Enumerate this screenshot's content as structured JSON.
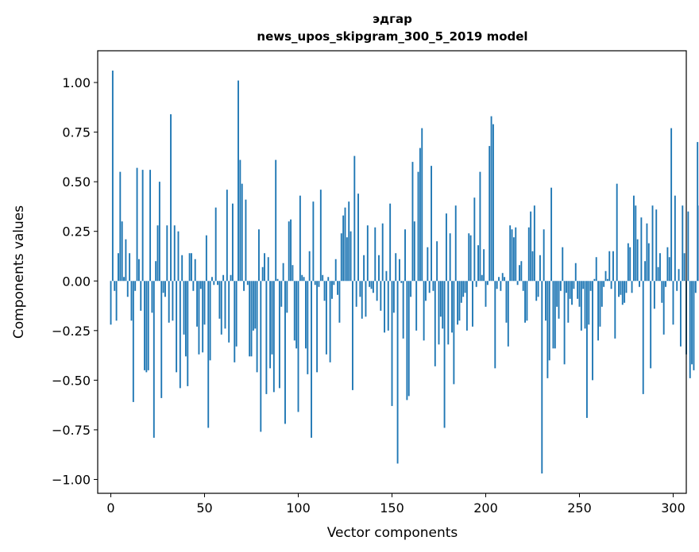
{
  "chart_data": {
    "type": "bar",
    "title": "эдгар",
    "subtitle": "news_upos_skipgram_300_5_2019 model",
    "xlabel": "Vector components",
    "ylabel": "Components values",
    "xlim": [
      -7,
      307
    ],
    "ylim": [
      -1.07,
      1.16
    ],
    "xticks": [
      0,
      50,
      100,
      150,
      200,
      250,
      300
    ],
    "yticks": [
      -1.0,
      -0.75,
      -0.5,
      -0.25,
      0.0,
      0.25,
      0.5,
      0.75,
      1.0
    ],
    "ytick_labels": [
      "−1.00",
      "−0.75",
      "−0.50",
      "−0.25",
      "0.00",
      "0.25",
      "0.50",
      "0.75",
      "1.00"
    ],
    "grid": false,
    "bar_color": "#1f77b4",
    "values": [
      -0.22,
      1.06,
      -0.05,
      -0.2,
      0.14,
      0.55,
      0.3,
      0.02,
      0.21,
      -0.08,
      0.14,
      -0.2,
      -0.61,
      -0.05,
      0.57,
      0.11,
      -0.15,
      0.56,
      -0.45,
      -0.46,
      -0.45,
      0.56,
      -0.16,
      -0.79,
      0.1,
      0.28,
      0.5,
      -0.59,
      -0.06,
      -0.08,
      0.28,
      -0.21,
      0.84,
      -0.2,
      0.28,
      -0.46,
      0.25,
      -0.54,
      0.13,
      -0.27,
      -0.38,
      -0.53,
      0.14,
      0.14,
      -0.05,
      0.11,
      -0.23,
      -0.37,
      -0.04,
      -0.36,
      -0.22,
      0.23,
      -0.74,
      -0.4,
      0.02,
      -0.02,
      0.37,
      -0.02,
      -0.19,
      -0.27,
      0.03,
      -0.24,
      0.46,
      -0.31,
      0.03,
      0.39,
      -0.41,
      -0.33,
      1.01,
      0.61,
      0.49,
      -0.05,
      0.41,
      -0.02,
      -0.38,
      -0.38,
      -0.25,
      -0.24,
      -0.46,
      0.26,
      -0.76,
      0.07,
      0.14,
      -0.57,
      0.12,
      -0.44,
      -0.37,
      -0.56,
      0.61,
      0.01,
      -0.54,
      -0.13,
      0.09,
      -0.72,
      -0.16,
      0.3,
      0.31,
      0.08,
      -0.3,
      -0.34,
      -0.66,
      0.43,
      0.03,
      0.02,
      -0.34,
      -0.47,
      0.15,
      -0.79,
      0.4,
      -0.02,
      -0.46,
      -0.03,
      0.46,
      0.03,
      -0.1,
      -0.37,
      0.02,
      -0.41,
      -0.09,
      -0.02,
      0.11,
      -0.07,
      -0.21,
      0.24,
      0.33,
      0.37,
      0.22,
      0.4,
      0.25,
      -0.55,
      0.63,
      -0.13,
      0.44,
      -0.08,
      -0.19,
      0.13,
      -0.18,
      0.28,
      -0.03,
      -0.04,
      -0.06,
      0.27,
      -0.1,
      0.13,
      -0.15,
      0.29,
      -0.26,
      0.05,
      -0.25,
      0.39,
      -0.63,
      -0.16,
      0.14,
      -0.92,
      0.11,
      -0.01,
      -0.29,
      0.26,
      -0.6,
      -0.58,
      -0.08,
      0.6,
      0.3,
      -0.25,
      0.55,
      0.67,
      0.77,
      -0.3,
      -0.1,
      0.17,
      -0.06,
      0.58,
      -0.05,
      -0.43,
      0.2,
      -0.32,
      -0.18,
      -0.24,
      -0.74,
      0.34,
      -0.32,
      0.24,
      -0.26,
      -0.52,
      0.38,
      -0.22,
      -0.2,
      -0.11,
      -0.08,
      -0.06,
      -0.25,
      0.24,
      0.23,
      -0.23,
      0.42,
      -0.03,
      0.18,
      0.55,
      0.03,
      0.16,
      -0.13,
      -0.02,
      0.68,
      0.83,
      0.79,
      -0.44,
      -0.04,
      0.02,
      -0.05,
      0.04,
      0.02,
      -0.21,
      -0.33,
      0.28,
      0.26,
      0.22,
      0.27,
      -0.02,
      0.08,
      0.1,
      -0.05,
      -0.21,
      -0.2,
      0.27,
      0.35,
      0.15,
      0.38,
      -0.1,
      -0.08,
      0.13,
      -0.97,
      0.26,
      -0.2,
      -0.49,
      -0.4,
      0.47,
      -0.34,
      -0.34,
      -0.13,
      -0.19,
      -0.05,
      0.17,
      -0.42,
      -0.06,
      -0.21,
      -0.09,
      -0.12,
      -0.04,
      0.09,
      -0.09,
      -0.13,
      -0.25,
      -0.04,
      -0.24,
      -0.69,
      -0.22,
      -0.05,
      -0.5,
      0.01,
      0.12,
      -0.3,
      -0.23,
      -0.13,
      -0.03,
      0.05,
      0.01,
      0.15,
      -0.04,
      0.15,
      -0.29,
      0.49,
      -0.08,
      -0.07,
      -0.12,
      -0.11,
      -0.06,
      0.19,
      0.17,
      -0.06,
      0.43,
      0.38,
      0.21,
      -0.03,
      0.32,
      -0.57,
      0.1,
      0.29,
      0.19,
      -0.44,
      0.38,
      -0.14,
      0.36,
      0.07,
      0.14,
      -0.11,
      -0.27,
      -0.03,
      0.17,
      0.12,
      0.77,
      -0.22,
      0.43,
      -0.05,
      0.06,
      -0.33,
      0.38,
      0.14,
      -0.37,
      0.35,
      -0.49,
      -0.42,
      -0.45,
      -0.06,
      0.7,
      0.38,
      -0.06
    ]
  }
}
